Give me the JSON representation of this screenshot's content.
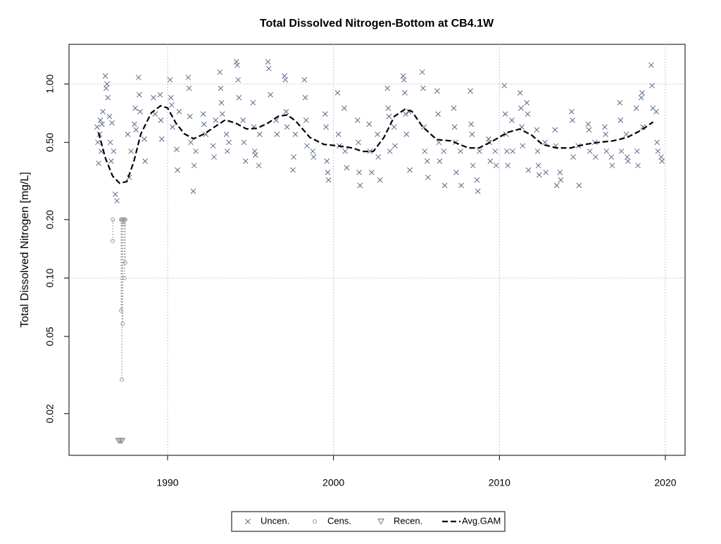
{
  "chart_data": {
    "type": "scatter",
    "title": "Total Dissolved Nitrogen-Bottom at CB4.1W",
    "y_label": "Total Dissolved Nitrogen [mg/L]",
    "log_y": true,
    "xlim": [
      1984.06,
      2021.19
    ],
    "xticks": [
      1990,
      2000,
      2010,
      2020
    ],
    "ylim": [
      0.0122,
      1.6
    ],
    "yticks": [
      0.02,
      0.05,
      {
        "value": 0.1,
        "label": "0.10"
      },
      {
        "value": 0.2,
        "label": "0.20"
      },
      {
        "value": 0.5,
        "label": "0.50"
      },
      {
        "value": 1,
        "label": "1.00"
      }
    ],
    "ygrid": [
      0.1,
      1
    ],
    "grid": true,
    "legend": "bottom",
    "series": [
      {
        "name": "Uncen.",
        "marker": "x",
        "color": "#5b6a8a",
        "x": [
          1985.75,
          1985.8,
          1985.85,
          1985.9,
          1985.95,
          1986.0,
          1986.05,
          1986.1,
          1986.25,
          1986.3,
          1986.35,
          1986.4,
          1986.5,
          1986.55,
          1986.6,
          1986.65,
          1986.75,
          1986.85,
          1986.95,
          1987.6,
          1987.7,
          1987.8,
          1988.0,
          1988.05,
          1988.1,
          1988.25,
          1988.3,
          1988.35,
          1988.6,
          1988.65,
          1989.15,
          1989.25,
          1989.55,
          1989.6,
          1989.65,
          1990.15,
          1990.2,
          1990.25,
          1990.3,
          1990.55,
          1990.6,
          1990.7,
          1991.25,
          1991.3,
          1991.35,
          1991.4,
          1991.55,
          1991.6,
          1991.7,
          1992.15,
          1992.2,
          1992.3,
          1992.75,
          1992.8,
          1992.9,
          1993.15,
          1993.2,
          1993.25,
          1993.3,
          1993.55,
          1993.6,
          1993.7,
          1994.15,
          1994.2,
          1994.25,
          1994.3,
          1994.55,
          1994.6,
          1994.7,
          1995.15,
          1995.2,
          1995.25,
          1995.3,
          1995.5,
          1995.55,
          1996.05,
          1996.1,
          1996.2,
          1996.55,
          1996.6,
          1997.05,
          1997.1,
          1997.15,
          1997.2,
          1997.55,
          1997.6,
          1997.7,
          1998.25,
          1998.3,
          1998.35,
          1998.4,
          1998.75,
          1998.8,
          1999.5,
          1999.55,
          1999.6,
          1999.65,
          1999.7,
          2000.25,
          2000.3,
          2000.35,
          2000.65,
          2000.7,
          2000.8,
          2001.45,
          2001.5,
          2001.55,
          2001.6,
          2002.15,
          2002.2,
          2002.3,
          2002.65,
          2002.7,
          2002.8,
          2003.25,
          2003.3,
          2003.35,
          2003.4,
          2003.65,
          2003.7,
          2004.2,
          2004.25,
          2004.3,
          2004.35,
          2004.4,
          2004.55,
          2004.6,
          2005.35,
          2005.4,
          2005.45,
          2005.5,
          2005.65,
          2005.7,
          2006.25,
          2006.3,
          2006.35,
          2006.4,
          2006.65,
          2006.7,
          2007.25,
          2007.3,
          2007.35,
          2007.4,
          2007.65,
          2007.7,
          2008.25,
          2008.3,
          2008.35,
          2008.4,
          2008.65,
          2008.7,
          2008.8,
          2009.35,
          2009.4,
          2009.45,
          2009.75,
          2009.8,
          2010.3,
          2010.35,
          2010.4,
          2010.45,
          2010.5,
          2010.75,
          2010.8,
          2011.25,
          2011.3,
          2011.35,
          2011.4,
          2011.65,
          2011.7,
          2011.75,
          2012.25,
          2012.3,
          2012.35,
          2012.4,
          2012.75,
          2012.8,
          2013.35,
          2013.4,
          2013.45,
          2013.65,
          2013.7,
          2014.35,
          2014.4,
          2014.45,
          2014.75,
          2014.8,
          2015.35,
          2015.4,
          2015.45,
          2015.75,
          2015.8,
          2016.35,
          2016.4,
          2016.45,
          2016.75,
          2016.8,
          2017.25,
          2017.3,
          2017.35,
          2017.65,
          2017.7,
          2017.75,
          2018.25,
          2018.3,
          2018.35,
          2018.55,
          2018.6,
          2018.65,
          2019.15,
          2019.2,
          2019.25,
          2019.45,
          2019.5,
          2019.55,
          2019.75,
          2019.8
        ],
        "values": [
          0.6,
          0.5,
          0.39,
          0.55,
          0.65,
          0.45,
          0.62,
          0.72,
          1.1,
          0.95,
          1.0,
          0.85,
          0.68,
          0.5,
          0.4,
          0.63,
          0.45,
          0.27,
          0.25,
          0.55,
          0.33,
          0.45,
          0.62,
          0.75,
          0.58,
          1.08,
          0.88,
          0.72,
          0.52,
          0.4,
          0.85,
          0.7,
          0.88,
          0.65,
          0.52,
          1.05,
          0.85,
          0.78,
          0.6,
          0.46,
          0.36,
          0.72,
          1.08,
          0.95,
          0.68,
          0.5,
          0.28,
          0.38,
          0.45,
          0.7,
          0.62,
          0.55,
          0.48,
          0.42,
          0.65,
          1.15,
          0.95,
          0.8,
          0.7,
          0.55,
          0.45,
          0.5,
          1.3,
          1.25,
          1.05,
          0.85,
          0.65,
          0.5,
          0.4,
          0.8,
          0.6,
          0.45,
          0.43,
          0.38,
          0.55,
          1.3,
          1.2,
          0.88,
          0.65,
          0.55,
          1.1,
          1.05,
          0.72,
          0.6,
          0.36,
          0.42,
          0.55,
          1.05,
          0.85,
          0.65,
          0.48,
          0.45,
          0.42,
          0.7,
          0.6,
          0.4,
          0.35,
          0.32,
          0.9,
          0.55,
          0.48,
          0.75,
          0.45,
          0.37,
          0.65,
          0.5,
          0.35,
          0.3,
          0.62,
          0.45,
          0.35,
          0.55,
          0.42,
          0.32,
          0.95,
          0.75,
          0.68,
          0.45,
          0.6,
          0.48,
          1.1,
          1.05,
          0.9,
          0.7,
          0.55,
          0.72,
          0.36,
          1.15,
          0.95,
          0.6,
          0.45,
          0.4,
          0.33,
          0.92,
          0.7,
          0.5,
          0.4,
          0.45,
          0.3,
          0.75,
          0.6,
          0.5,
          0.35,
          0.45,
          0.3,
          0.92,
          0.62,
          0.55,
          0.38,
          0.32,
          0.28,
          0.45,
          0.52,
          0.5,
          0.4,
          0.45,
          0.38,
          0.98,
          0.7,
          0.55,
          0.45,
          0.38,
          0.65,
          0.45,
          0.9,
          0.75,
          0.6,
          0.48,
          0.8,
          0.7,
          0.36,
          0.58,
          0.45,
          0.38,
          0.34,
          0.5,
          0.35,
          0.58,
          0.48,
          0.3,
          0.35,
          0.32,
          0.72,
          0.65,
          0.42,
          0.48,
          0.3,
          0.62,
          0.58,
          0.45,
          0.5,
          0.42,
          0.6,
          0.55,
          0.45,
          0.42,
          0.38,
          0.8,
          0.65,
          0.45,
          0.55,
          0.42,
          0.4,
          0.75,
          0.45,
          0.38,
          0.85,
          0.9,
          0.6,
          1.25,
          0.98,
          0.75,
          0.72,
          0.5,
          0.45,
          0.42,
          0.4
        ]
      },
      {
        "name": "Cens.",
        "marker": "circle",
        "color": "#999999",
        "x": [
          1986.7,
          1987.2,
          1987.25,
          1987.3,
          1987.35,
          1987.4,
          1987.45
        ],
        "values": [
          0.2,
          0.2,
          0.2,
          0.2,
          0.2,
          0.2,
          0.2
        ],
        "lower": [
          0.155,
          0.068,
          0.03,
          0.058,
          0.19,
          0.1,
          0.12
        ]
      },
      {
        "name": "Recen.",
        "marker": "triangle",
        "color": "#777777",
        "x": [
          1987.05,
          1987.15,
          1987.25
        ],
        "values": [
          0.0145,
          0.0145,
          0.0145
        ]
      },
      {
        "name": "Avg.GAM",
        "marker": "dashed-line",
        "color": "#000000",
        "x": [
          1985.84,
          1986.26,
          1986.69,
          1987.11,
          1987.54,
          1987.96,
          1988.39,
          1989.02,
          1989.58,
          1990.0,
          1990.51,
          1991.02,
          1991.57,
          1992.21,
          1992.84,
          1993.48,
          1994.12,
          1994.76,
          1995.39,
          1996.03,
          1996.67,
          1997.22,
          1997.73,
          1998.58,
          1999.43,
          2000.28,
          2001.13,
          2001.76,
          2002.4,
          2003.04,
          2003.67,
          2004.31,
          2004.73,
          2005.37,
          2006.22,
          2007.07,
          2008.13,
          2008.77,
          2009.62,
          2010.47,
          2011.23,
          2011.95,
          2012.59,
          2013.44,
          2014.29,
          2015.14,
          2015.99,
          2016.84,
          2017.69,
          2018.54,
          2019.26
        ],
        "values": [
          0.562,
          0.413,
          0.335,
          0.308,
          0.314,
          0.396,
          0.553,
          0.71,
          0.772,
          0.753,
          0.627,
          0.553,
          0.522,
          0.553,
          0.601,
          0.653,
          0.627,
          0.586,
          0.591,
          0.627,
          0.681,
          0.693,
          0.643,
          0.53,
          0.488,
          0.48,
          0.468,
          0.449,
          0.449,
          0.53,
          0.681,
          0.741,
          0.722,
          0.601,
          0.517,
          0.509,
          0.468,
          0.468,
          0.509,
          0.562,
          0.586,
          0.544,
          0.488,
          0.468,
          0.468,
          0.488,
          0.5,
          0.509,
          0.53,
          0.577,
          0.637
        ]
      }
    ]
  }
}
